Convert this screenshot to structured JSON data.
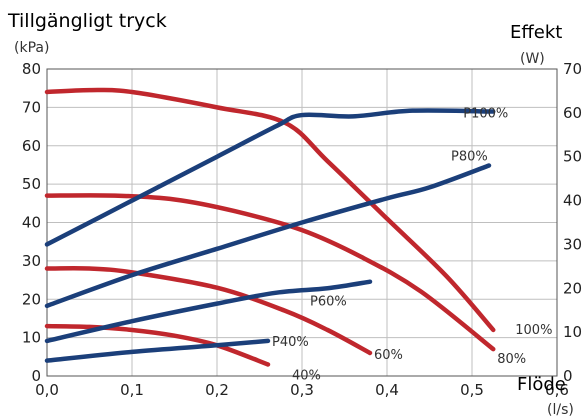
{
  "chart_data": {
    "type": "line",
    "title": "Tillgängligt tryck",
    "ylabel_unit": "(kPa)",
    "y2label": "Effekt",
    "y2label_unit": "(W)",
    "xlabel": "Flöde",
    "xlabel_unit": "(l/s)",
    "xlim": [
      0.0,
      0.6
    ],
    "ylim": [
      0,
      80
    ],
    "y2lim": [
      0,
      70
    ],
    "xticks": [
      0.0,
      0.1,
      0.2,
      0.3,
      0.4,
      0.5,
      0.6
    ],
    "xtick_labels": [
      "0,0",
      "0,1",
      "0,2",
      "0,3",
      "0,4",
      "0,5",
      "0,6"
    ],
    "yticks": [
      0,
      10,
      20,
      30,
      40,
      50,
      60,
      70,
      80
    ],
    "y2ticks": [
      0,
      10,
      20,
      30,
      40,
      50,
      60,
      70
    ],
    "grid": true,
    "pressure_series": [
      {
        "name": "100%",
        "color": "#c0272d",
        "axis": "left",
        "x": [
          0.0,
          0.05,
          0.1,
          0.2,
          0.28,
          0.33,
          0.4,
          0.47,
          0.525
        ],
        "y": [
          74,
          74.5,
          74,
          70,
          66,
          56,
          41,
          26,
          12
        ]
      },
      {
        "name": "80%",
        "color": "#c0272d",
        "axis": "left",
        "x": [
          0.0,
          0.08,
          0.15,
          0.22,
          0.3,
          0.37,
          0.44,
          0.525
        ],
        "y": [
          47,
          47,
          46,
          43,
          38,
          31,
          22,
          7
        ]
      },
      {
        "name": "60%",
        "color": "#c0272d",
        "axis": "left",
        "x": [
          0.0,
          0.05,
          0.1,
          0.2,
          0.28,
          0.33,
          0.38
        ],
        "y": [
          28,
          28,
          27,
          23,
          17,
          12,
          6
        ]
      },
      {
        "name": "40%",
        "color": "#c0272d",
        "axis": "left",
        "x": [
          0.0,
          0.05,
          0.1,
          0.15,
          0.2,
          0.26
        ],
        "y": [
          13,
          12.8,
          12,
          10.5,
          8,
          3
        ]
      }
    ],
    "power_series": [
      {
        "name": "P100%",
        "color": "#1b3f7a",
        "axis": "right",
        "x": [
          0.0,
          0.1,
          0.2,
          0.27,
          0.3,
          0.36,
          0.43,
          0.525
        ],
        "y": [
          30,
          40,
          50,
          57,
          59.5,
          59.2,
          60.5,
          60.3
        ]
      },
      {
        "name": "P80%",
        "color": "#1b3f7a",
        "axis": "right",
        "x": [
          0.0,
          0.1,
          0.2,
          0.3,
          0.4,
          0.45,
          0.52
        ],
        "y": [
          16,
          23,
          29,
          35,
          40.5,
          43,
          48
        ]
      },
      {
        "name": "P60%",
        "color": "#1b3f7a",
        "axis": "right",
        "x": [
          0.0,
          0.1,
          0.2,
          0.27,
          0.33,
          0.38
        ],
        "y": [
          8,
          12.5,
          16.5,
          19,
          20,
          21.5
        ]
      },
      {
        "name": "P40%",
        "color": "#1b3f7a",
        "axis": "right",
        "x": [
          0.0,
          0.1,
          0.2,
          0.26
        ],
        "y": [
          3.5,
          5.5,
          7,
          8
        ]
      }
    ]
  }
}
